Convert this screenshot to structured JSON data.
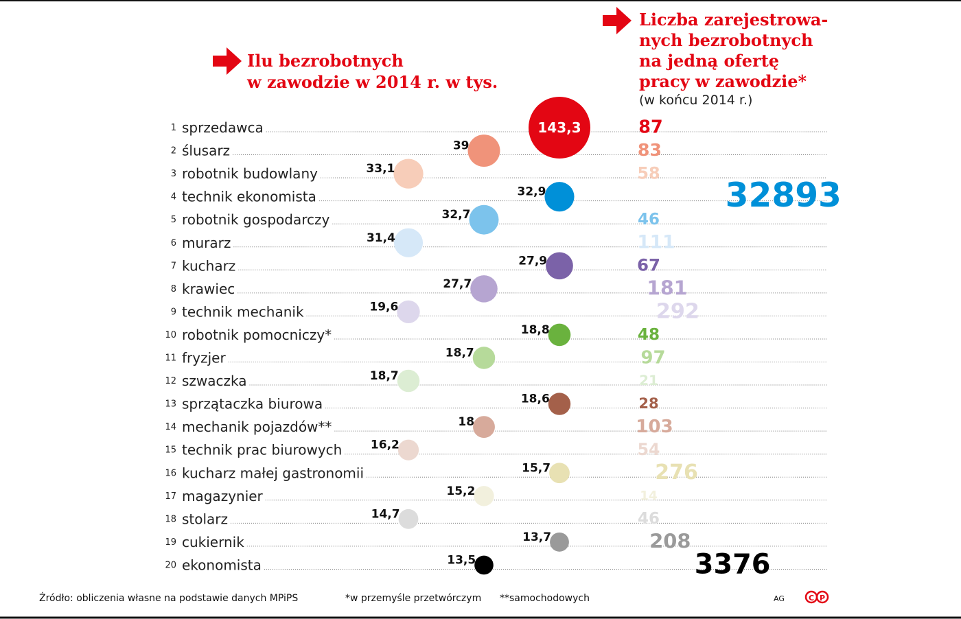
{
  "chart_data": {
    "type": "dot-table",
    "title_left": [
      "Ilu bezrobotnych",
      "w zawodzie w 2014 r. w tys."
    ],
    "title_right": [
      "Liczba zarejestrowa-",
      "nych bezrobotnych",
      "na jedną ofertę",
      "pracy w zawodzie*"
    ],
    "subtitle_right": "(w końcu 2014 r.)",
    "ranks": [
      1,
      2,
      3,
      4,
      5,
      6,
      7,
      8,
      9,
      10,
      11,
      12,
      13,
      14,
      15,
      16,
      17,
      18,
      19,
      20
    ],
    "categories": [
      "sprzedawca",
      "ślusarz",
      "robotnik budowlany",
      "technik ekonomista",
      "robotnik gospodarczy",
      "murarz",
      "kucharz",
      "krawiec",
      "technik mechanik",
      "robotnik pomocniczy*",
      "fryzjer",
      "szwaczka",
      "sprzątaczka biurowa",
      "mechanik pojazdów**",
      "technik prac biurowych",
      "kucharz małej gastronomii",
      "magazynier",
      "stolarz",
      "cukiernik",
      "ekonomista"
    ],
    "values": [
      143.3,
      39,
      33.1,
      32.9,
      32.7,
      31.4,
      27.9,
      27.7,
      19.6,
      18.8,
      18.7,
      18.7,
      18.6,
      18,
      16.2,
      15.7,
      15.2,
      14.7,
      13.7,
      13.5
    ],
    "value_labels": [
      "143,3",
      "39",
      "33,1",
      "32,9",
      "32,7",
      "31,4",
      "27,9",
      "27,7",
      "19,6",
      "18,8",
      "18,7",
      "18,7",
      "18,6",
      "18",
      "16,2",
      "15,7",
      "15,2",
      "14,7",
      "13,7",
      "13,5"
    ],
    "ratios": [
      87,
      83,
      58,
      32893,
      46,
      111,
      67,
      181,
      292,
      48,
      97,
      21,
      28,
      103,
      54,
      276,
      14,
      46,
      208,
      3376
    ],
    "colors": [
      "#e30613",
      "#f0937a",
      "#f7cdb9",
      "#0090d8",
      "#7cc3ec",
      "#d6e8f8",
      "#7b62a8",
      "#b6a5d1",
      "#ddd7ec",
      "#6ab23e",
      "#b6da9a",
      "#dcedd3",
      "#a4604a",
      "#d7aa9b",
      "#ecd8d0",
      "#e8e1b3",
      "#f2f0dd",
      "#dcdcdc",
      "#9a9a9a",
      "#000000"
    ],
    "source": "Źródło: obliczenia własne na podstawie danych MPiPS",
    "footnotes": [
      "*w przemyśle przetwórczym",
      "**samochodowych"
    ],
    "author": "AG",
    "logo": [
      "C",
      "P"
    ]
  }
}
